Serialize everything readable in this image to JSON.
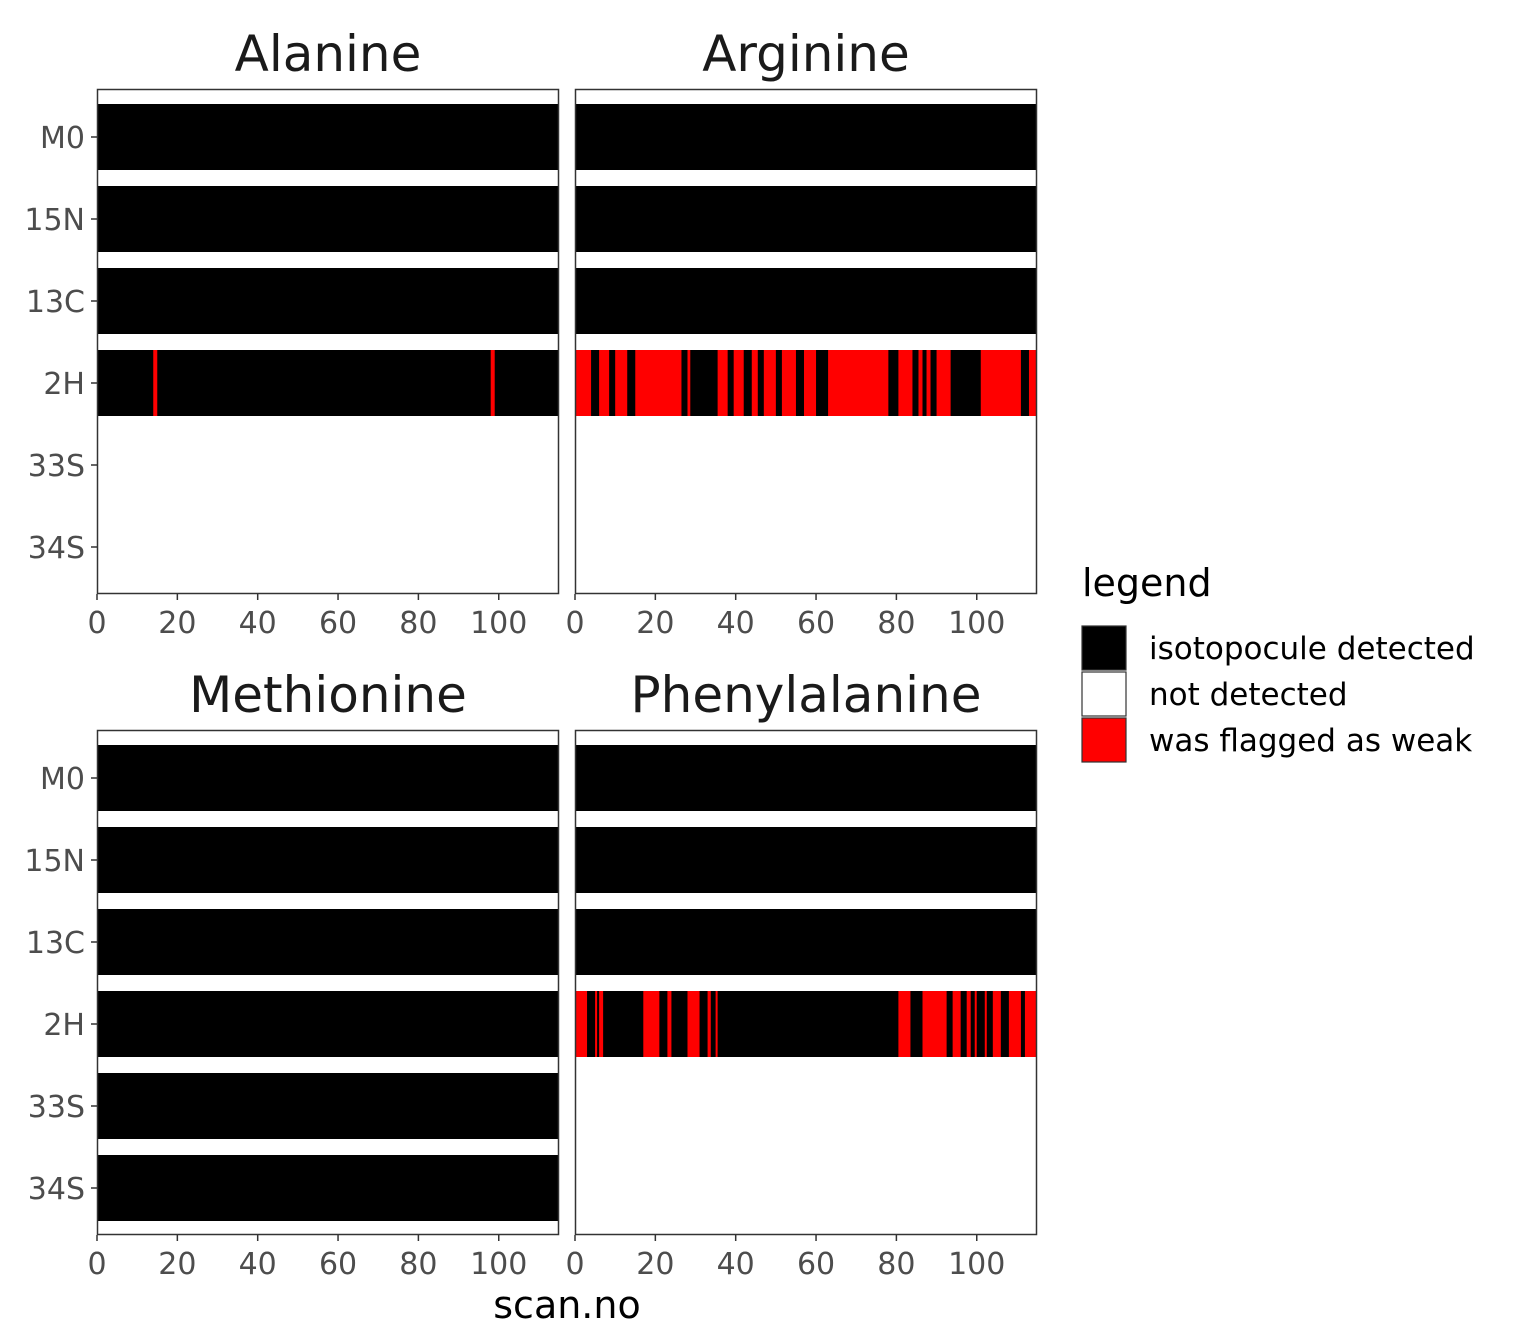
{
  "colors": {
    "isotopocule_detected": "#000000",
    "not_detected": "#ffffff",
    "was_flagged_as_weak": "#ff0000",
    "panel_border": "#333333",
    "tick_text": "#4d4d4d"
  },
  "chart_data": {
    "type": "heatmap",
    "facet_layout": "2x2",
    "xlabel": "scan.no",
    "ylabel": "",
    "xlim": [
      0,
      115
    ],
    "x_ticks": [
      0,
      20,
      40,
      60,
      80,
      100
    ],
    "y_categories": [
      "M0",
      "15N",
      "13C",
      "2H",
      "33S",
      "34S"
    ],
    "legend": {
      "title": "legend",
      "position": "right",
      "entries": [
        {
          "key": "detected",
          "label": "isotopocule detected",
          "color": "#000000"
        },
        {
          "key": "not",
          "label": "not detected",
          "color": "#ffffff"
        },
        {
          "key": "weak",
          "label": "was flagged as weak",
          "color": "#ff0000"
        }
      ]
    },
    "panels": [
      {
        "title": "Alanine",
        "rows": [
          {
            "isotopocule": "M0",
            "status": "detected",
            "weak_intervals": []
          },
          {
            "isotopocule": "15N",
            "status": "detected",
            "weak_intervals": []
          },
          {
            "isotopocule": "13C",
            "status": "detected",
            "weak_intervals": []
          },
          {
            "isotopocule": "2H",
            "status": "detected",
            "weak_intervals": [
              [
                14,
                15
              ],
              [
                98,
                99
              ]
            ]
          },
          {
            "isotopocule": "33S",
            "status": "not",
            "weak_intervals": []
          },
          {
            "isotopocule": "34S",
            "status": "not",
            "weak_intervals": []
          }
        ]
      },
      {
        "title": "Arginine",
        "rows": [
          {
            "isotopocule": "M0",
            "status": "detected",
            "weak_intervals": []
          },
          {
            "isotopocule": "15N",
            "status": "detected",
            "weak_intervals": []
          },
          {
            "isotopocule": "13C",
            "status": "detected",
            "weak_intervals": []
          },
          {
            "isotopocule": "2H",
            "status": "detected",
            "weak_intervals": [
              [
                0,
                4
              ],
              [
                6,
                8.5
              ],
              [
                10,
                13
              ],
              [
                15,
                26.5
              ],
              [
                28,
                28.7
              ],
              [
                35.5,
                38
              ],
              [
                39.5,
                42
              ],
              [
                44,
                45.5
              ],
              [
                47,
                50
              ],
              [
                51.5,
                55
              ],
              [
                57,
                60
              ],
              [
                63,
                78
              ],
              [
                80.5,
                84
              ],
              [
                85.5,
                86.5
              ],
              [
                87.5,
                88.5
              ],
              [
                90,
                93.5
              ],
              [
                101,
                111
              ],
              [
                113,
                115
              ]
            ]
          },
          {
            "isotopocule": "33S",
            "status": "not",
            "weak_intervals": []
          },
          {
            "isotopocule": "34S",
            "status": "not",
            "weak_intervals": []
          }
        ]
      },
      {
        "title": "Methionine",
        "rows": [
          {
            "isotopocule": "M0",
            "status": "detected",
            "weak_intervals": []
          },
          {
            "isotopocule": "15N",
            "status": "detected",
            "weak_intervals": []
          },
          {
            "isotopocule": "13C",
            "status": "detected",
            "weak_intervals": []
          },
          {
            "isotopocule": "2H",
            "status": "detected",
            "weak_intervals": []
          },
          {
            "isotopocule": "33S",
            "status": "detected",
            "weak_intervals": []
          },
          {
            "isotopocule": "34S",
            "status": "detected",
            "weak_intervals": []
          }
        ]
      },
      {
        "title": "Phenylalanine",
        "rows": [
          {
            "isotopocule": "M0",
            "status": "detected",
            "weak_intervals": []
          },
          {
            "isotopocule": "15N",
            "status": "detected",
            "weak_intervals": []
          },
          {
            "isotopocule": "13C",
            "status": "detected",
            "weak_intervals": []
          },
          {
            "isotopocule": "2H",
            "status": "detected",
            "weak_intervals": [
              [
                0,
                3
              ],
              [
                5,
                5.5
              ],
              [
                6,
                7
              ],
              [
                17,
                21
              ],
              [
                23,
                24
              ],
              [
                28,
                31
              ],
              [
                33,
                33.8
              ],
              [
                35,
                35.5
              ],
              [
                80.5,
                83.5
              ],
              [
                86.5,
                92.5
              ],
              [
                94,
                96
              ],
              [
                97.5,
                98.5
              ],
              [
                99.5,
                100
              ],
              [
                102,
                102.5
              ],
              [
                104,
                106
              ],
              [
                108,
                111
              ],
              [
                112,
                115
              ]
            ]
          },
          {
            "isotopocule": "33S",
            "status": "not",
            "weak_intervals": []
          },
          {
            "isotopocule": "34S",
            "status": "not",
            "weak_intervals": []
          }
        ]
      }
    ]
  }
}
